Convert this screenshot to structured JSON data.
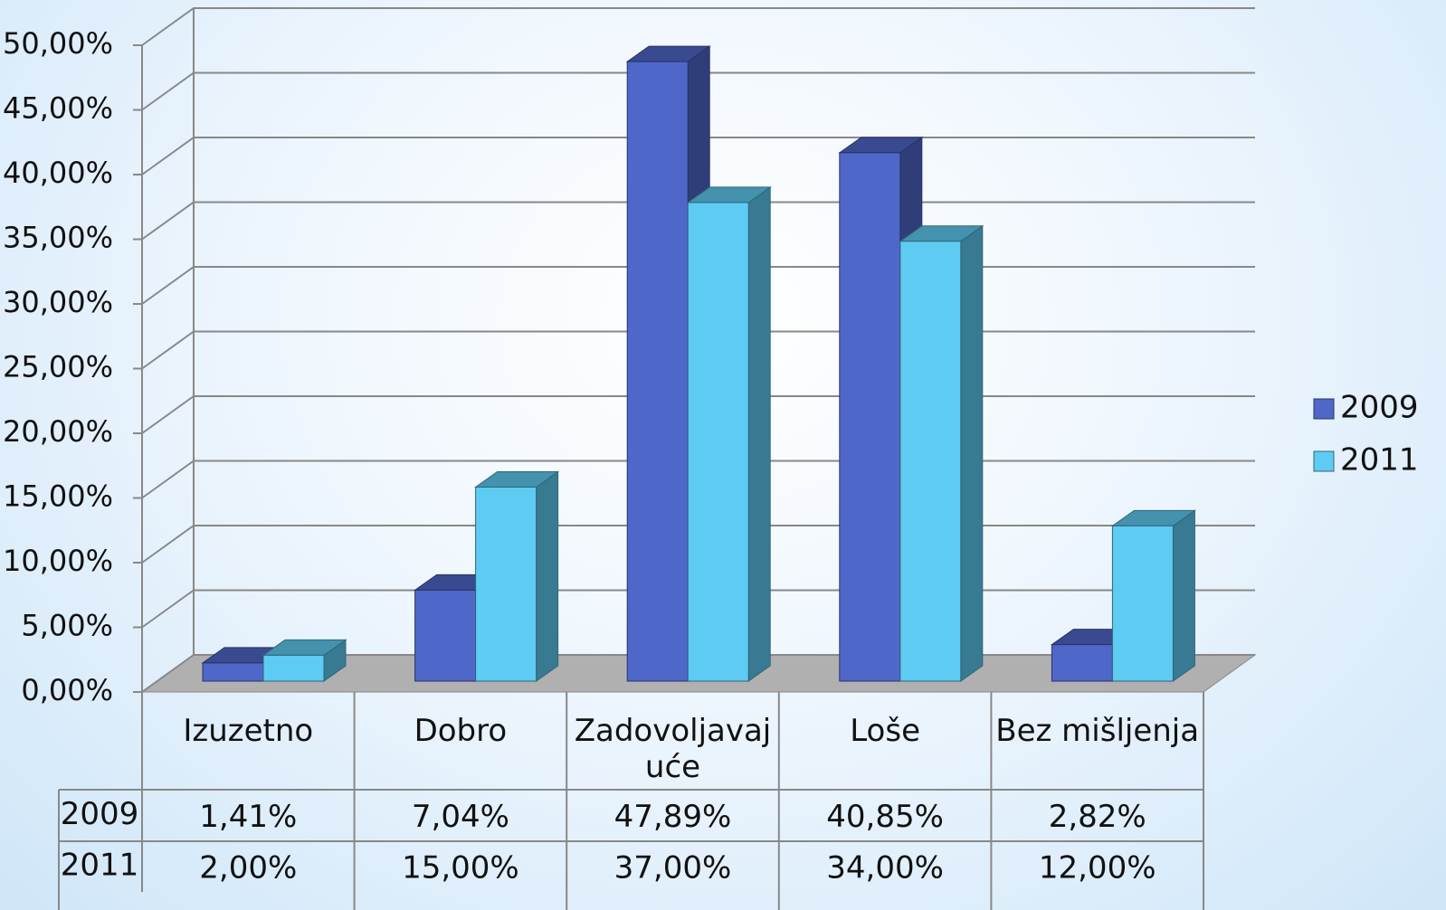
{
  "chart_data": {
    "type": "bar3d",
    "categories": [
      "Izuzetno",
      "Dobro",
      "Zadovoljavajuće",
      "Loše",
      "Bez mišljenja"
    ],
    "series": [
      {
        "name": "2009",
        "color": "#4f67c8",
        "values": [
          1.41,
          7.04,
          47.89,
          40.85,
          2.82
        ],
        "value_labels": [
          "1,41%",
          "7,04%",
          "47,89%",
          "40,85%",
          "2,82%"
        ]
      },
      {
        "name": "2011",
        "color": "#5ecbf2",
        "values": [
          2,
          15,
          37,
          34,
          12
        ],
        "value_labels": [
          "2,00%",
          "15,00%",
          "37,00%",
          "34,00%",
          "12,00%"
        ]
      }
    ],
    "ylim": [
      0,
      50
    ],
    "yticks": [
      {
        "value": 0,
        "label": "0,00%"
      },
      {
        "value": 5,
        "label": "5,00%"
      },
      {
        "value": 10,
        "label": "10,00%"
      },
      {
        "value": 15,
        "label": "15,00%"
      },
      {
        "value": 20,
        "label": "20,00%"
      },
      {
        "value": 25,
        "label": "25,00%"
      },
      {
        "value": 30,
        "label": "30,00%"
      },
      {
        "value": 35,
        "label": "35,00%"
      },
      {
        "value": 40,
        "label": "40,00%"
      },
      {
        "value": 45,
        "label": "45,00%"
      },
      {
        "value": 50,
        "label": "50,00%"
      }
    ],
    "grid": true,
    "legend": "right",
    "data_table": true
  }
}
